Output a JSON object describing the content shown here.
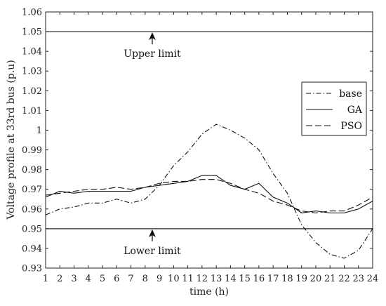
{
  "chart_data": {
    "type": "line",
    "xlabel": "time (h)",
    "ylabel": "Voltage profile at 33rd bus (p.u)",
    "xlim": [
      1,
      24
    ],
    "ylim": [
      0.93,
      1.06
    ],
    "x_ticks": [
      1,
      2,
      3,
      4,
      5,
      6,
      7,
      8,
      9,
      10,
      11,
      12,
      13,
      14,
      15,
      16,
      17,
      18,
      19,
      20,
      21,
      22,
      23,
      24
    ],
    "y_ticks": [
      0.93,
      0.94,
      0.95,
      0.96,
      0.97,
      0.98,
      0.99,
      1,
      1.01,
      1.02,
      1.03,
      1.04,
      1.05,
      1.06
    ],
    "grid": false,
    "legend_position": "right",
    "x": [
      1,
      2,
      3,
      4,
      5,
      6,
      7,
      8,
      9,
      10,
      11,
      12,
      13,
      14,
      15,
      16,
      17,
      18,
      19,
      20,
      21,
      22,
      23,
      24
    ],
    "series": [
      {
        "name": "base",
        "dash": "dash-dot",
        "values": [
          0.957,
          0.96,
          0.961,
          0.963,
          0.963,
          0.965,
          0.963,
          0.965,
          0.972,
          0.982,
          0.989,
          0.998,
          1.003,
          1.0,
          0.996,
          0.99,
          0.978,
          0.968,
          0.952,
          0.943,
          0.937,
          0.935,
          0.939,
          0.95
        ]
      },
      {
        "name": "GA",
        "dash": "solid",
        "values": [
          0.966,
          0.969,
          0.968,
          0.969,
          0.969,
          0.969,
          0.969,
          0.971,
          0.972,
          0.973,
          0.974,
          0.977,
          0.977,
          0.972,
          0.97,
          0.973,
          0.966,
          0.963,
          0.958,
          0.959,
          0.958,
          0.958,
          0.96,
          0.964
        ]
      },
      {
        "name": "PSO",
        "dash": "dashed",
        "values": [
          0.967,
          0.968,
          0.969,
          0.97,
          0.97,
          0.971,
          0.97,
          0.971,
          0.973,
          0.974,
          0.974,
          0.975,
          0.975,
          0.973,
          0.97,
          0.968,
          0.964,
          0.962,
          0.959,
          0.958,
          0.959,
          0.959,
          0.962,
          0.966
        ]
      }
    ],
    "reference_lines": [
      {
        "value": 1.05,
        "label": "Upper limit",
        "arrow_x": 8.5,
        "label_x": 8.5
      },
      {
        "value": 0.95,
        "label": "Lower limit",
        "arrow_x": 8.5,
        "label_x": 8.5
      }
    ]
  }
}
